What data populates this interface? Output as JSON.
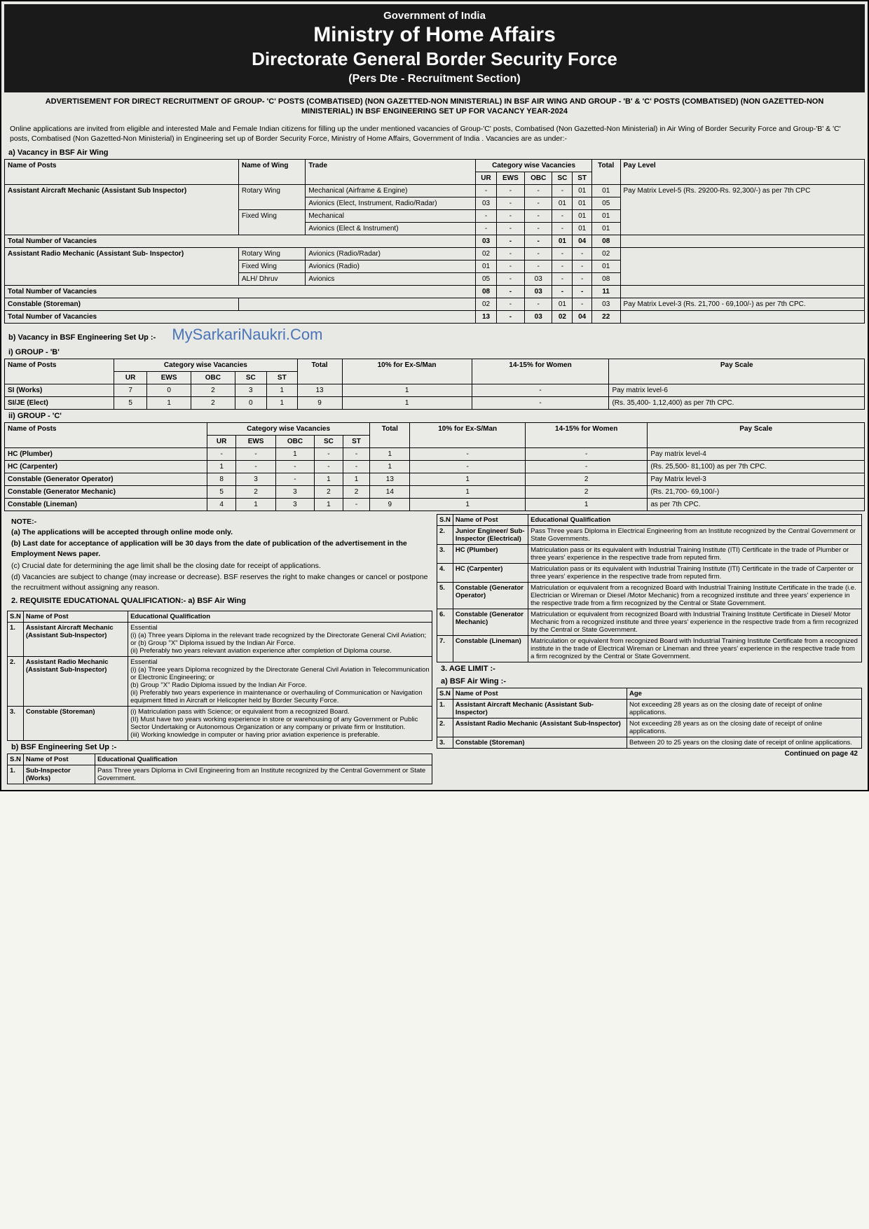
{
  "header": {
    "gov": "Government of India",
    "ministry": "Ministry of Home Affairs",
    "dg": "Directorate General Border Security Force",
    "pers": "(Pers Dte - Recruitment Section)"
  },
  "adv_heading": "ADVERTISEMENT FOR DIRECT RECRUITMENT OF GROUP- 'C' POSTS (COMBATISED) (NON GAZETTED-NON MINISTERIAL) IN BSF AIR WING AND GROUP - 'B' & 'C' POSTS (COMBATISED) (NON GAZETTED-NON MINISTERIAL) IN BSF ENGINEERING SET UP FOR VACANCY YEAR-2024",
  "intro": "Online applications are invited from eligible and interested Male and Female Indian citizens for filling up the under mentioned vacancies of Group-'C' posts, Combatised (Non Gazetted-Non Ministerial) in Air Wing of Border Security Force and Group-'B' & 'C' posts, Combatised (Non Gazetted-Non Ministerial) in Engineering set up of Border Security Force, Ministry of Home Affairs, Government of India . Vacancies are as under:-",
  "sec_a_label": "a) Vacancy in BSF Air Wing",
  "air_wing": {
    "headers": {
      "post": "Name of Posts",
      "wing": "Name of Wing",
      "trade": "Trade",
      "catg": "Category wise Vacancies",
      "ur": "UR",
      "ews": "EWS",
      "obc": "OBC",
      "sc": "SC",
      "st": "ST",
      "total": "Total",
      "pay": "Pay Level"
    },
    "posts": {
      "aam": "Assistant Aircraft Mechanic (Assistant Sub Inspector)",
      "arm": "Assistant Radio Mechanic (Assistant Sub- Inspector)",
      "storeman": "Constable (Storeman)"
    },
    "wings": {
      "rotary": "Rotary Wing",
      "fixed": "Fixed Wing",
      "alh": "ALH/ Dhruv"
    },
    "trades": {
      "mech_airframe": "Mechanical (Airframe & Engine)",
      "avionics_eir": "Avionics (Elect, Instrument, Radio/Radar)",
      "mech": "Mechanical",
      "avionics_ei": "Avionics (Elect & Instrument)",
      "avionics_rr": "Avionics (Radio/Radar)",
      "avionics_r": "Avionics (Radio)",
      "avionics": "Avionics"
    },
    "rows": [
      {
        "ur": "-",
        "ews": "-",
        "obc": "-",
        "sc": "-",
        "st": "01",
        "total": "01"
      },
      {
        "ur": "03",
        "ews": "-",
        "obc": "-",
        "sc": "01",
        "st": "01",
        "total": "05"
      },
      {
        "ur": "-",
        "ews": "-",
        "obc": "-",
        "sc": "-",
        "st": "01",
        "total": "01"
      },
      {
        "ur": "-",
        "ews": "-",
        "obc": "-",
        "sc": "-",
        "st": "01",
        "total": "01"
      }
    ],
    "total_vac_label": "Total Number of Vacancies",
    "aam_total": {
      "ur": "03",
      "ews": "-",
      "obc": "-",
      "sc": "01",
      "st": "04",
      "total": "08"
    },
    "arm_rows": [
      {
        "ur": "02",
        "ews": "-",
        "obc": "-",
        "sc": "-",
        "st": "-",
        "total": "02"
      },
      {
        "ur": "01",
        "ews": "-",
        "obc": "-",
        "sc": "-",
        "st": "-",
        "total": "01"
      },
      {
        "ur": "05",
        "ews": "-",
        "obc": "03",
        "sc": "-",
        "st": "-",
        "total": "08"
      }
    ],
    "arm_total": {
      "ur": "08",
      "ews": "-",
      "obc": "03",
      "sc": "-",
      "st": "-",
      "total": "11"
    },
    "storeman_row": {
      "ur": "02",
      "ews": "-",
      "obc": "-",
      "sc": "01",
      "st": "-",
      "total": "03"
    },
    "grand_total": {
      "ur": "13",
      "ews": "-",
      "obc": "03",
      "sc": "02",
      "st": "04",
      "total": "22"
    },
    "pay5": "Pay Matrix Level-5 (Rs. 29200-Rs. 92,300/-) as per 7th CPC",
    "pay3": "Pay Matrix Level-3 (Rs. 21,700 - 69,100/-) as per 7th CPC."
  },
  "sec_b_label": "b) Vacancy in BSF Engineering Set Up :-",
  "watermark": "MySarkariNaukri.Com",
  "group_b_label": "i) GROUP - 'B'",
  "eng_headers": {
    "post": "Name of Posts",
    "catg": "Category wise Vacancies",
    "ur": "UR",
    "ews": "EWS",
    "obc": "OBC",
    "sc": "SC",
    "st": "ST",
    "total": "Total",
    "ex": "10% for Ex-S/Man",
    "women": "14-15% for Women",
    "pay": "Pay Scale"
  },
  "group_b": [
    {
      "post": "SI (Works)",
      "ur": "7",
      "ews": "0",
      "obc": "2",
      "sc": "3",
      "st": "1",
      "total": "13",
      "ex": "1",
      "women": "-",
      "pay": "Pay matrix level-6"
    },
    {
      "post": "SI/JE (Elect)",
      "ur": "5",
      "ews": "1",
      "obc": "2",
      "sc": "0",
      "st": "1",
      "total": "9",
      "ex": "1",
      "women": "-",
      "pay": "(Rs. 35,400- 1,12,400) as per 7th CPC."
    }
  ],
  "group_c_label": "ii) GROUP - 'C'",
  "group_c": [
    {
      "post": "HC (Plumber)",
      "ur": "-",
      "ews": "-",
      "obc": "1",
      "sc": "-",
      "st": "-",
      "total": "1",
      "ex": "-",
      "women": "-",
      "pay": "Pay matrix level-4"
    },
    {
      "post": "HC (Carpenter)",
      "ur": "1",
      "ews": "-",
      "obc": "-",
      "sc": "-",
      "st": "-",
      "total": "1",
      "ex": "-",
      "women": "-",
      "pay": "(Rs. 25,500- 81,100) as per 7th CPC."
    },
    {
      "post": "Constable (Generator Operator)",
      "ur": "8",
      "ews": "3",
      "obc": "-",
      "sc": "1",
      "st": "1",
      "total": "13",
      "ex": "1",
      "women": "2",
      "pay": "Pay Matrix level-3"
    },
    {
      "post": "Constable (Generator Mechanic)",
      "ur": "5",
      "ews": "2",
      "obc": "3",
      "sc": "2",
      "st": "2",
      "total": "14",
      "ex": "1",
      "women": "2",
      "pay": "(Rs. 21,700- 69,100/-)"
    },
    {
      "post": "Constable (Lineman)",
      "ur": "4",
      "ews": "1",
      "obc": "3",
      "sc": "1",
      "st": "-",
      "total": "9",
      "ex": "1",
      "women": "1",
      "pay": "as per 7th CPC."
    }
  ],
  "notes": {
    "title": "NOTE:-",
    "a": "(a)  The applications will be accepted through online mode only.",
    "b": "(b)  Last date for acceptance of application will be 30 days from the date of publication of the advertisement in the Employment News paper.",
    "c": "(c)  Crucial date for determining the age limit shall be the closing date for receipt of applications.",
    "d": "(d)  Vacancies are subject to change (may increase or decrease). BSF reserves the right to make changes or cancel or postpone the recruitment without assigning any reason."
  },
  "qual_title": "2. REQUISITE EDUCATIONAL QUALIFICATION:- a) BSF Air Wing",
  "qual_headers": {
    "sn": "S.N",
    "post": "Name of Post",
    "qual": "Educational Qualification"
  },
  "qual_air": [
    {
      "sn": "1.",
      "post": "Assistant Aircraft Mechanic (Assistant Sub-Inspector)",
      "qual": "Essential\n(i) (a) Three years Diploma in the relevant trade recognized by the Directorate General Civil Aviation; or (b) Group \"X\" Diploma issued by the Indian Air Force.\n(ii) Preferably two years relevant aviation experience after completion of Diploma course."
    },
    {
      "sn": "2.",
      "post": "Assistant Radio Mechanic (Assistant Sub-Inspector)",
      "qual": "Essential\n(i) (a) Three years Diploma recognized by the Directorate General Civil Aviation in Telecommunication or Electronic Engineering; or\n(b) Group \"X\" Radio Diploma issued by the Indian Air Force.\n(ii) Preferably two years experience in maintenance or overhauling of Communication or Navigation equipment fitted in Aircraft or Helicopter held by Border Security Force."
    },
    {
      "sn": "3.",
      "post": "Constable (Storeman)",
      "qual": "(i) Matriculation pass with Science; or equivalent from a recognized Board.\n(II) Must have two years working experience in store or warehousing of any Government or Public Sector Undertaking or Autonomous Organization or any company or private firm or Institution.\n(iii) Working knowledge in computer or having prior aviation experience is preferable."
    }
  ],
  "qual_eng_label": "b) BSF Engineering Set Up :-",
  "qual_eng_left": [
    {
      "sn": "1.",
      "post": "Sub-Inspector (Works)",
      "qual": "Pass Three years Diploma in Civil Engineering from an Institute recognized by the Central Government or State Government."
    }
  ],
  "qual_eng_right": [
    {
      "sn": "2.",
      "post": "Junior Engineer/ Sub- Inspector (Electrical)",
      "qual": "Pass Three years Diploma in Electrical Engineering from an Institute recognized by the Central Government or State Governments."
    },
    {
      "sn": "3.",
      "post": "HC (Plumber)",
      "qual": "Matriculation pass or its equivalent with Industrial Training Institute (ITI) Certificate in the trade of Plumber or three years' experience in the respective trade from reputed firm."
    },
    {
      "sn": "4.",
      "post": "HC (Carpenter)",
      "qual": "Matriculation pass or its equivalent with Industrial Training Institute (ITI) Certificate in the trade of Carpenter or three years' experience in the respective trade from reputed firm."
    },
    {
      "sn": "5.",
      "post": "Constable (Generator Operator)",
      "qual": "Matriculation or equivalent from a recognized Board with Industrial Training Institute Certificate in the trade (i.e. Electrician or Wireman or Diesel /Motor Mechanic) from a recognized institute and three years' experience in the respective trade from a firm recognized by the Central or State Government."
    },
    {
      "sn": "6.",
      "post": "Constable (Generator Mechanic)",
      "qual": "Matriculation or equivalent from recognized Board with Industrial Training Institute Certificate in Diesel/ Motor Mechanic from a recognized institute and three years' experience in the respective trade from a firm recognized by the Central or State Government."
    },
    {
      "sn": "7.",
      "post": "Constable (Lineman)",
      "qual": "Matriculation or equivalent from recognized Board with Industrial Training Institute Certificate from a recognized institute in the trade of Electrical Wireman or Lineman and three years' experience in the respective trade from a firm recognized by the Central or State Government."
    }
  ],
  "age_title": "3. AGE LIMIT :-",
  "age_sub": "a) BSF Air Wing :-",
  "age_headers": {
    "sn": "S.N",
    "post": "Name of Post",
    "age": "Age"
  },
  "age_rows": [
    {
      "sn": "1.",
      "post": "Assistant Aircraft Mechanic (Assistant Sub-Inspector)",
      "age": "Not exceeding 28 years as on the closing date of receipt of online applications."
    },
    {
      "sn": "2.",
      "post": "Assistant Radio Mechanic (Assistant Sub-Inspector)",
      "age": "Not exceeding 28 years as on the closing date of receipt of online applications."
    },
    {
      "sn": "3.",
      "post": "Constable (Storeman)",
      "age": "Between 20 to 25 years on the closing date of receipt of online applications."
    }
  ],
  "continued": "Continued on page 42"
}
